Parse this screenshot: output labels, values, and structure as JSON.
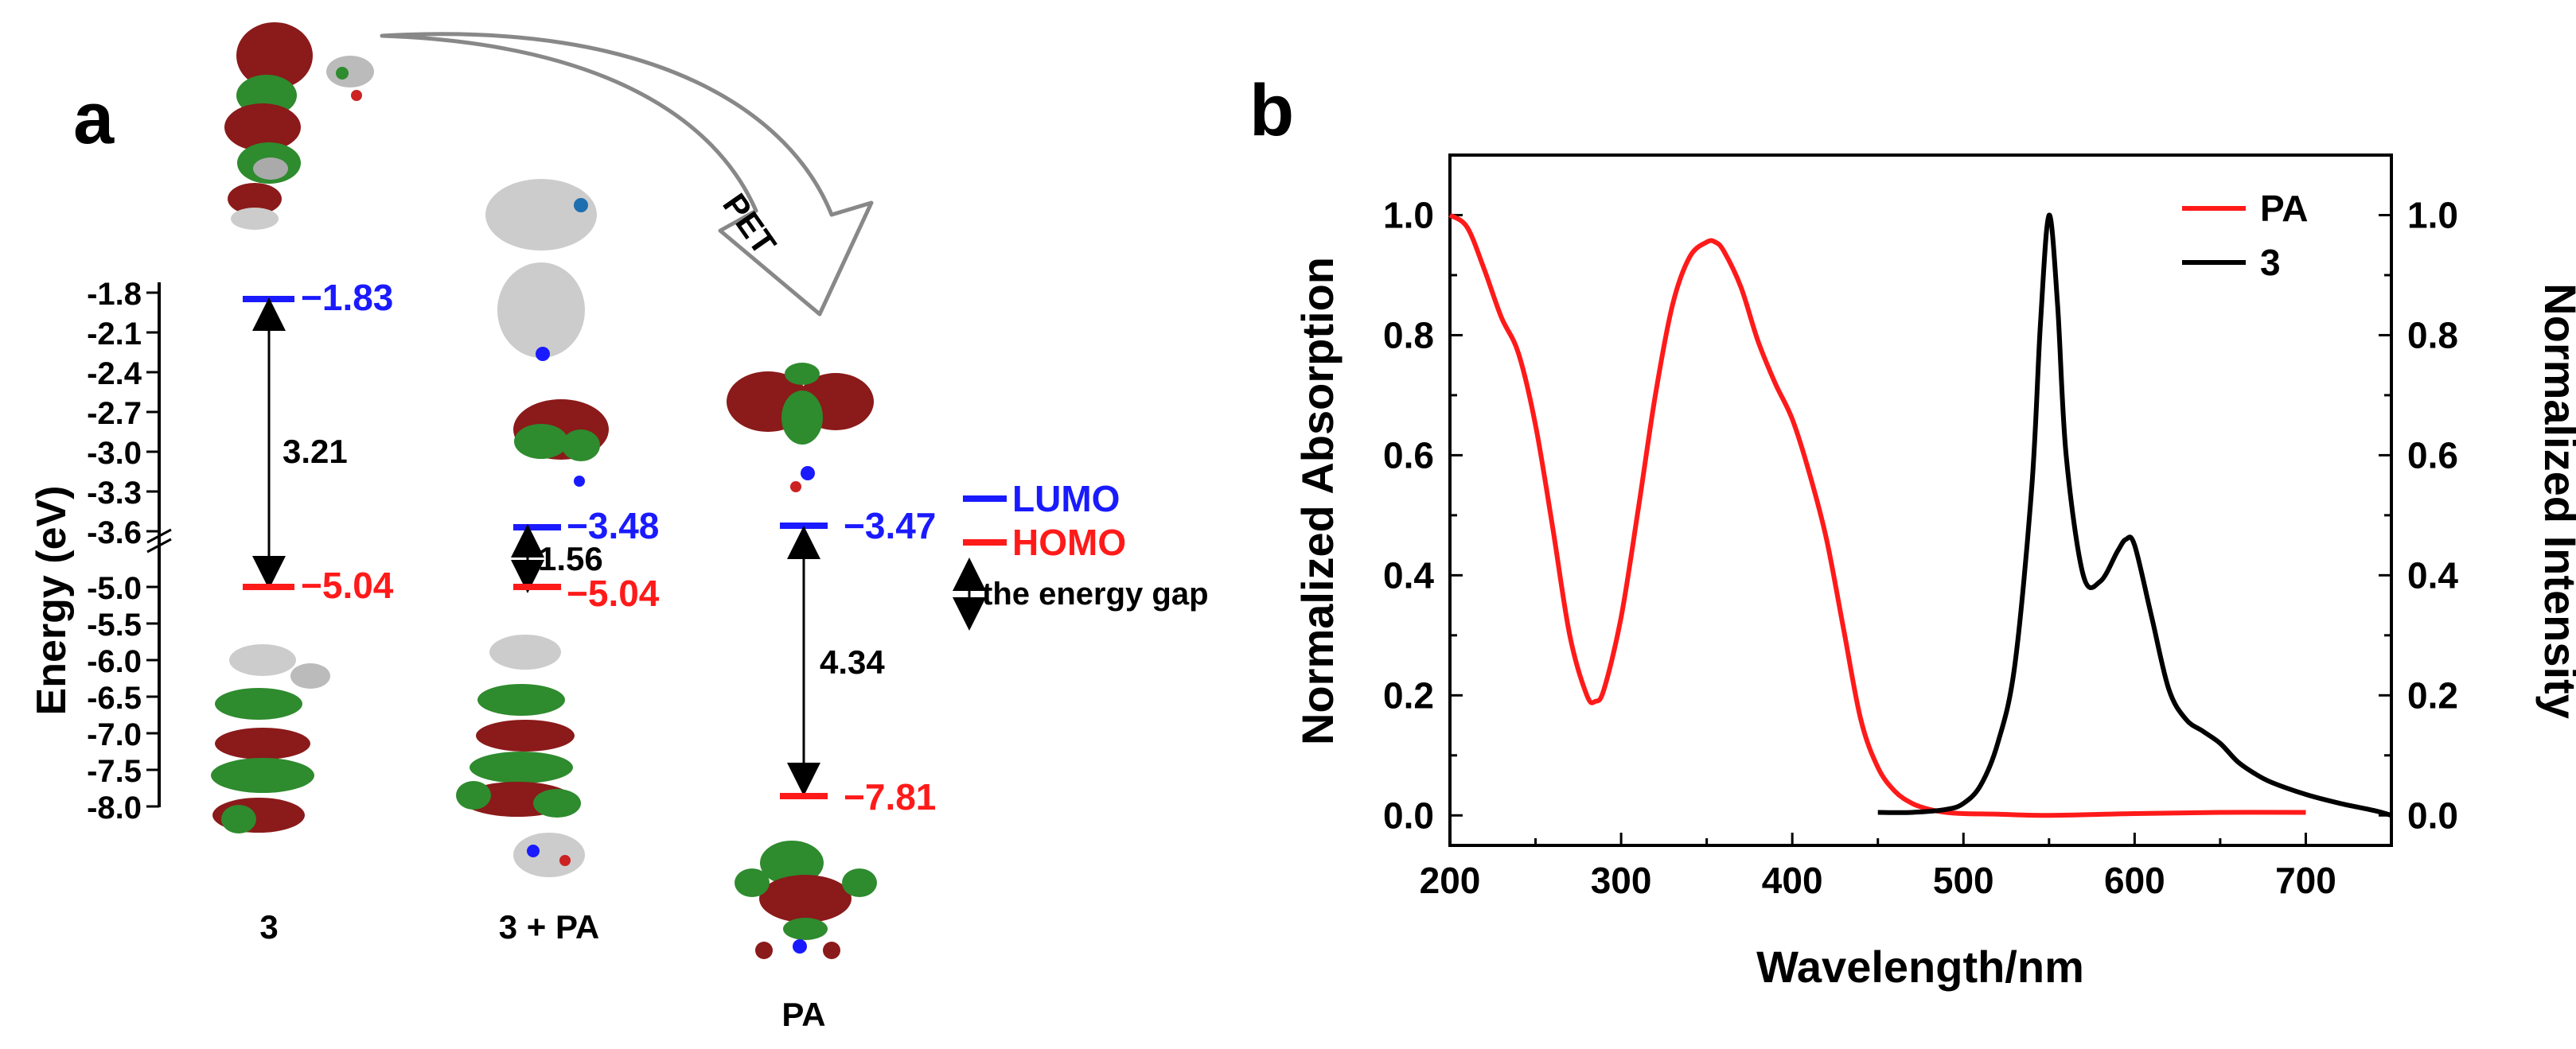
{
  "panels": {
    "a_label": "a",
    "b_label": "b"
  },
  "colors": {
    "lumo": "#1a1aff",
    "homo": "#ff1a1a",
    "orbital_red": "#8b1a1a",
    "orbital_green": "#2e8b2e",
    "pa_curve": "#ff1a1a",
    "curve_3": "#000000"
  },
  "panel_a": {
    "y_axis_label": "Energy (eV)",
    "y_ticks_upper": [
      "-1.8",
      "-2.1",
      "-2.4",
      "-2.7",
      "-3.0",
      "-3.3",
      "-3.6"
    ],
    "y_ticks_lower": [
      "-5.0",
      "-5.5",
      "-6.0",
      "-6.5",
      "-7.0",
      "-7.5",
      "-8.0"
    ],
    "columns": [
      {
        "name": "3",
        "lumo": "−1.83",
        "homo": "−5.04",
        "gap": "3.21"
      },
      {
        "name": "3 + PA",
        "lumo": "−3.48",
        "homo": "−5.04",
        "gap": "1.56"
      },
      {
        "name": "PA",
        "lumo": "−3.47",
        "homo": "−7.81",
        "gap": "4.34"
      }
    ],
    "arrow_label": "PET",
    "legend": {
      "lumo": "LUMO",
      "homo": "HOMO",
      "gap": "the energy gap"
    }
  },
  "chart_data": {
    "type": "line",
    "xlabel": "Wavelength/nm",
    "ylabel": "Normalized Absorption",
    "y2label": "Normalized Intensity",
    "xlim": [
      200,
      750
    ],
    "ylim": [
      -0.05,
      1.1
    ],
    "x_ticks": [
      "200",
      "300",
      "400",
      "500",
      "600",
      "700"
    ],
    "y_ticks": [
      "0.0",
      "0.2",
      "0.4",
      "0.6",
      "0.8",
      "1.0"
    ],
    "legend_position": "top-right",
    "series": [
      {
        "name": "PA",
        "axis": "left",
        "x": [
          200,
          210,
          220,
          230,
          240,
          250,
          260,
          270,
          280,
          285,
          290,
          300,
          310,
          320,
          330,
          340,
          350,
          355,
          360,
          370,
          380,
          390,
          400,
          410,
          420,
          430,
          440,
          450,
          460,
          470,
          480,
          490,
          500,
          520,
          550,
          600,
          650,
          700
        ],
        "y": [
          1.0,
          0.98,
          0.91,
          0.83,
          0.77,
          0.65,
          0.48,
          0.3,
          0.2,
          0.19,
          0.21,
          0.33,
          0.51,
          0.7,
          0.85,
          0.93,
          0.955,
          0.955,
          0.94,
          0.88,
          0.79,
          0.72,
          0.66,
          0.57,
          0.46,
          0.31,
          0.16,
          0.08,
          0.04,
          0.02,
          0.01,
          0.005,
          0.003,
          0.002,
          0.0,
          0.003,
          0.005,
          0.005
        ]
      },
      {
        "name": "3",
        "axis": "right",
        "x": [
          450,
          470,
          490,
          500,
          510,
          520,
          530,
          540,
          545,
          550,
          555,
          560,
          570,
          580,
          590,
          595,
          600,
          610,
          620,
          630,
          640,
          650,
          660,
          670,
          680,
          700,
          720,
          740,
          750
        ],
        "y": [
          0.005,
          0.005,
          0.01,
          0.02,
          0.05,
          0.12,
          0.25,
          0.55,
          0.82,
          1.0,
          0.85,
          0.6,
          0.4,
          0.39,
          0.44,
          0.46,
          0.45,
          0.33,
          0.21,
          0.16,
          0.14,
          0.12,
          0.09,
          0.07,
          0.055,
          0.035,
          0.02,
          0.008,
          0.0
        ]
      }
    ]
  }
}
